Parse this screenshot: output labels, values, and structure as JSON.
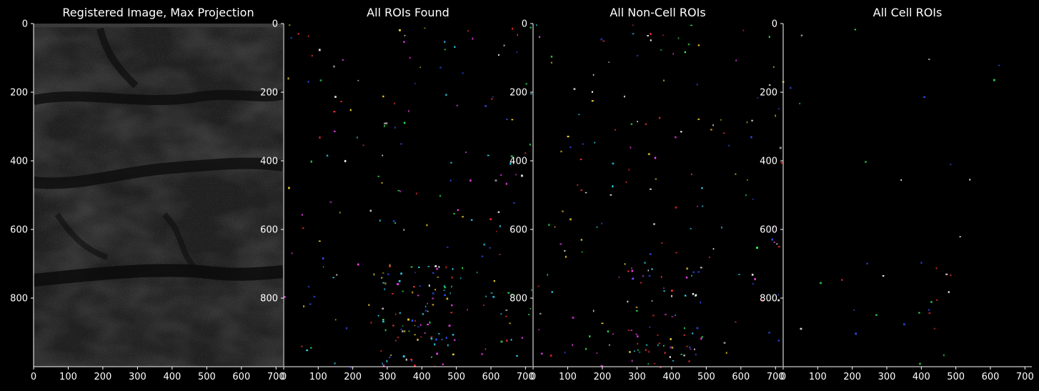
{
  "figure": {
    "background": "#000000",
    "text_color": "#ffffff",
    "axis_color": "#ffffff"
  },
  "chart_data": [
    {
      "type": "heatmap",
      "title": "Registered Image, Max Projection",
      "xlabel": "",
      "ylabel": "",
      "xlim": [
        0,
        720
      ],
      "ylim": [
        1000,
        0
      ],
      "x_ticks": [
        0,
        100,
        200,
        300,
        400,
        500,
        600,
        700
      ],
      "y_ticks": [
        0,
        200,
        400,
        600,
        800
      ],
      "colormap": "gray",
      "content": "grayscale max-projection fluorescence image"
    },
    {
      "type": "heatmap",
      "title": "All ROIs Found",
      "xlabel": "",
      "ylabel": "",
      "xlim": [
        0,
        720
      ],
      "ylim": [
        1000,
        0
      ],
      "x_ticks": [
        0,
        100,
        200,
        300,
        400,
        500,
        600,
        700
      ],
      "y_ticks": [
        0,
        200,
        400,
        600,
        800
      ],
      "colormap": "random-color ROI masks",
      "roi_colors": [
        "#ff3030",
        "#30ff60",
        "#3050ff",
        "#30e0ff",
        "#ffe030",
        "#ff40ff",
        "#ffffff"
      ],
      "roi_count_approx": 260
    },
    {
      "type": "heatmap",
      "title": "All Non-Cell ROIs",
      "xlabel": "",
      "ylabel": "",
      "xlim": [
        0,
        720
      ],
      "ylim": [
        1000,
        0
      ],
      "x_ticks": [
        0,
        100,
        200,
        300,
        400,
        500,
        600,
        700
      ],
      "y_ticks": [
        0,
        200,
        400,
        600,
        800
      ],
      "colormap": "random-color ROI masks",
      "roi_colors": [
        "#ff3030",
        "#30ff60",
        "#3050ff",
        "#30e0ff",
        "#ffe030",
        "#ff40ff",
        "#ffffff"
      ],
      "roi_count_approx": 220
    },
    {
      "type": "heatmap",
      "title": "All Cell ROIs",
      "xlabel": "",
      "ylabel": "",
      "xlim": [
        0,
        720
      ],
      "ylim": [
        1000,
        0
      ],
      "x_ticks": [
        0,
        100,
        200,
        300,
        400,
        500,
        600,
        700
      ],
      "y_ticks": [
        0,
        200,
        400,
        600,
        800
      ],
      "colormap": "random-color ROI masks",
      "roi_colors": [
        "#3050ff",
        "#30ff60",
        "#ffffff",
        "#ff3030"
      ],
      "roi_count_approx": 35
    }
  ]
}
